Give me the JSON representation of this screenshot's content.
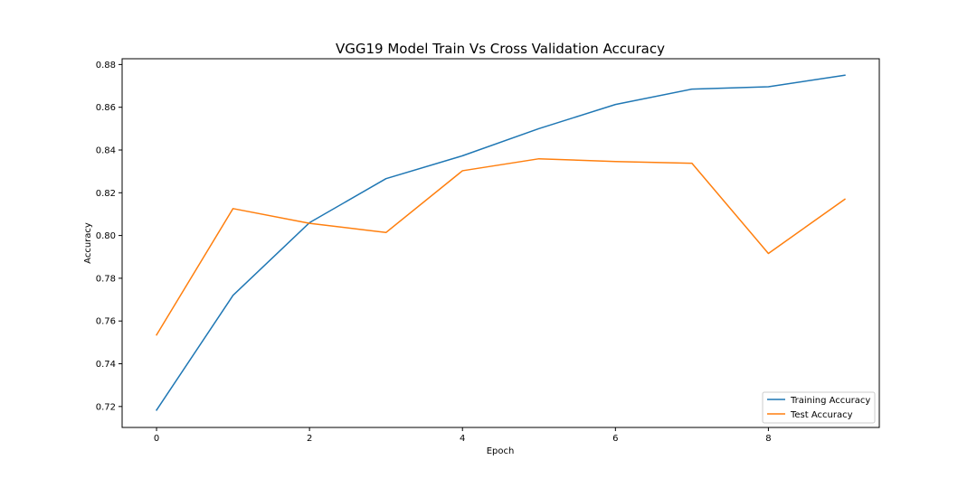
{
  "chart_data": {
    "type": "line",
    "title": "VGG19 Model Train Vs Cross Validation Accuracy",
    "xlabel": "Epoch",
    "ylabel": "Accuracy",
    "x": [
      0,
      1,
      2,
      3,
      4,
      5,
      6,
      7,
      8,
      9
    ],
    "xlim": [
      -0.45,
      9.45
    ],
    "ylim": [
      0.7102,
      0.8827
    ],
    "xticks": [
      0,
      2,
      4,
      6,
      8
    ],
    "yticks": [
      0.72,
      0.74,
      0.76,
      0.78,
      0.8,
      0.82,
      0.84,
      0.86,
      0.88
    ],
    "xtick_labels": [
      "0",
      "2",
      "4",
      "6",
      "8"
    ],
    "ytick_labels": [
      "0.72",
      "0.74",
      "0.76",
      "0.78",
      "0.80",
      "0.82",
      "0.84",
      "0.86",
      "0.88"
    ],
    "grid": false,
    "legend_position": "lower-right",
    "series": [
      {
        "name": "Training Accuracy",
        "color": "#1f77b4",
        "values": [
          0.7183,
          0.772,
          0.806,
          0.8266,
          0.8373,
          0.85,
          0.8613,
          0.8685,
          0.8696,
          0.875
        ]
      },
      {
        "name": "Test Accuracy",
        "color": "#ff7f0e",
        "values": [
          0.7535,
          0.8126,
          0.8057,
          0.8014,
          0.8303,
          0.8359,
          0.8346,
          0.8338,
          0.7916,
          0.817
        ]
      }
    ]
  }
}
